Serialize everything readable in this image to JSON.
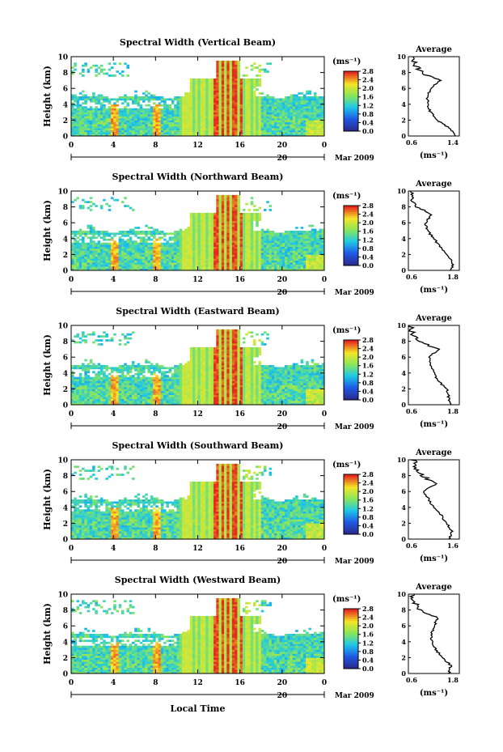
{
  "figure": {
    "date_label": "Mar 2009",
    "day_label": "20",
    "xlabel": "Local Time",
    "ylabel": "Height (km)",
    "colorbar_unit": "(ms⁻¹)",
    "profile_title": "Average",
    "profile_unit": "(ms⁻¹)",
    "xtick_labels": [
      "0",
      "4",
      "8",
      "12",
      "16",
      "20",
      "0"
    ],
    "ytick_labels": [
      "0",
      "2",
      "4",
      "6",
      "8",
      "10"
    ],
    "colorbar_tick_labels": [
      "0.0",
      "0.4",
      "0.8",
      "1.2",
      "1.6",
      "2.0",
      "2.4",
      "2.8"
    ],
    "colors": {
      "low": "#2a2a8e",
      "blue": "#1e5ae6",
      "cyan": "#1ec8e6",
      "green": "#8ae65a",
      "yellow": "#f5e628",
      "red": "#e6281e"
    }
  },
  "chart_data": [
    {
      "type": "heatmap",
      "title": "Spectral Width (Vertical Beam)",
      "xlabel": "Local Time",
      "ylabel": "Height (km)",
      "xlim": [
        0,
        24
      ],
      "ylim": [
        0,
        10
      ],
      "xticks": [
        0,
        4,
        8,
        12,
        16,
        20,
        24
      ],
      "colorbar": {
        "label": "(ms⁻¹)",
        "range": [
          0.0,
          2.8
        ],
        "ticks": [
          0.0,
          0.4,
          0.8,
          1.2,
          1.6,
          2.0,
          2.4,
          2.8
        ]
      },
      "profile": {
        "title": "Average",
        "xlabel": "(ms⁻¹)",
        "xlim": [
          0.6,
          1.4
        ],
        "xtick_labels": [
          "0.6",
          "1.4"
        ],
        "height_km": [
          0,
          1,
          2,
          3,
          4,
          5,
          6,
          7,
          8,
          9,
          10
        ],
        "values": [
          1.35,
          1.25,
          1.05,
          0.95,
          0.9,
          0.9,
          0.95,
          1.1,
          0.8,
          0.7,
          0.65
        ]
      }
    },
    {
      "type": "heatmap",
      "title": "Spectral Width (Northward Beam)",
      "xlabel": "Local Time",
      "ylabel": "Height (km)",
      "xlim": [
        0,
        24
      ],
      "ylim": [
        0,
        10
      ],
      "xticks": [
        0,
        4,
        8,
        12,
        16,
        20,
        24
      ],
      "colorbar": {
        "label": "(ms⁻¹)",
        "range": [
          0.0,
          2.8
        ],
        "ticks": [
          0.0,
          0.4,
          0.8,
          1.2,
          1.6,
          2.0,
          2.4,
          2.8
        ]
      },
      "profile": {
        "title": "Average",
        "xlabel": "(ms⁻¹)",
        "xlim": [
          0.6,
          1.8
        ],
        "xtick_labels": [
          "0.6",
          "1.8"
        ],
        "height_km": [
          0,
          1,
          2,
          3,
          4,
          5,
          6,
          7,
          8,
          9,
          10
        ],
        "values": [
          1.6,
          1.65,
          1.5,
          1.35,
          1.2,
          1.05,
          1.0,
          1.15,
          0.8,
          0.7,
          0.65
        ]
      }
    },
    {
      "type": "heatmap",
      "title": "Spectral Width (Eastward Beam)",
      "xlabel": "Local Time",
      "ylabel": "Height (km)",
      "xlim": [
        0,
        24
      ],
      "ylim": [
        0,
        10
      ],
      "xticks": [
        0,
        4,
        8,
        12,
        16,
        20,
        24
      ],
      "colorbar": {
        "label": "(ms⁻¹)",
        "range": [
          0.0,
          2.8
        ],
        "ticks": [
          0.0,
          0.4,
          0.8,
          1.2,
          1.6,
          2.0,
          2.4,
          2.8
        ]
      },
      "profile": {
        "title": "Average",
        "xlabel": "(ms⁻¹)",
        "xlim": [
          0.6,
          1.8
        ],
        "xtick_labels": [
          "0.6",
          "1.8"
        ],
        "height_km": [
          0,
          1,
          2,
          3,
          4,
          5,
          6,
          7,
          8,
          9,
          10
        ],
        "values": [
          1.6,
          1.55,
          1.5,
          1.3,
          1.2,
          1.1,
          1.1,
          1.3,
          0.8,
          0.7,
          0.65
        ]
      }
    },
    {
      "type": "heatmap",
      "title": "Spectral Width (Southward Beam)",
      "xlabel": "Local Time",
      "ylabel": "Height (km)",
      "xlim": [
        0,
        24
      ],
      "ylim": [
        0,
        10
      ],
      "xticks": [
        0,
        4,
        8,
        12,
        16,
        20,
        24
      ],
      "colorbar": {
        "label": "(ms⁻¹)",
        "range": [
          0.0,
          2.8
        ],
        "ticks": [
          0.0,
          0.4,
          0.8,
          1.2,
          1.6,
          2.0,
          2.4,
          2.8
        ]
      },
      "profile": {
        "title": "Average",
        "xlabel": "(ms⁻¹)",
        "xlim": [
          0.6,
          1.6
        ],
        "xtick_labels": [
          "0.6",
          "1.6"
        ],
        "height_km": [
          0,
          1,
          2,
          3,
          4,
          5,
          6,
          7,
          8,
          9,
          10
        ],
        "values": [
          1.4,
          1.45,
          1.35,
          1.25,
          1.1,
          1.0,
          0.9,
          1.15,
          0.85,
          0.75,
          0.7
        ]
      }
    },
    {
      "type": "heatmap",
      "title": "Spectral Width (Westward Beam)",
      "xlabel": "Local Time",
      "ylabel": "Height (km)",
      "xlim": [
        0,
        24
      ],
      "ylim": [
        0,
        10
      ],
      "xticks": [
        0,
        4,
        8,
        12,
        16,
        20,
        24
      ],
      "colorbar": {
        "label": "(ms⁻¹)",
        "range": [
          0.0,
          2.8
        ],
        "ticks": [
          0.0,
          0.4,
          0.8,
          1.2,
          1.6,
          2.0,
          2.4,
          2.8
        ]
      },
      "profile": {
        "title": "Average",
        "xlabel": "(ms⁻¹)",
        "xlim": [
          0.6,
          1.8
        ],
        "xtick_labels": [
          "0.6",
          "1.8"
        ],
        "height_km": [
          0,
          1,
          2,
          3,
          4,
          5,
          6,
          7,
          8,
          9,
          10
        ],
        "values": [
          1.55,
          1.6,
          1.4,
          1.25,
          1.15,
          1.15,
          1.2,
          1.3,
          0.85,
          0.75,
          0.7
        ]
      }
    }
  ]
}
